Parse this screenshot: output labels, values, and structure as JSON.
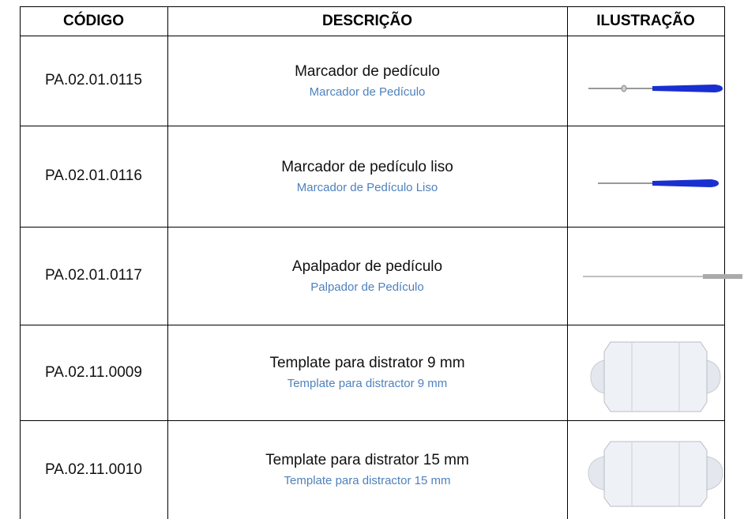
{
  "table": {
    "headers": [
      "CÓDIGO",
      "DESCRIÇÃO",
      "ILUSTRAÇÃO"
    ],
    "rows": [
      {
        "code": "PA.02.01.0115",
        "description": "Marcador de pedículo",
        "translation": "Marcador de Pedículo"
      },
      {
        "code": "PA.02.01.0116",
        "description": "Marcador de pedículo liso",
        "translation": "Marcador de Pedículo Liso"
      },
      {
        "code": "PA.02.01.0117",
        "description": "Apalpador de pedículo",
        "translation": "Palpador de Pedículo"
      },
      {
        "code": "PA.02.11.0009",
        "description": "Template para distrator 9 mm",
        "translation": "Template para distractor 9 mm"
      },
      {
        "code": "PA.02.11.0010",
        "description": "Template para distrator 15 mm",
        "translation": "Template para distractor 15 mm"
      }
    ]
  }
}
